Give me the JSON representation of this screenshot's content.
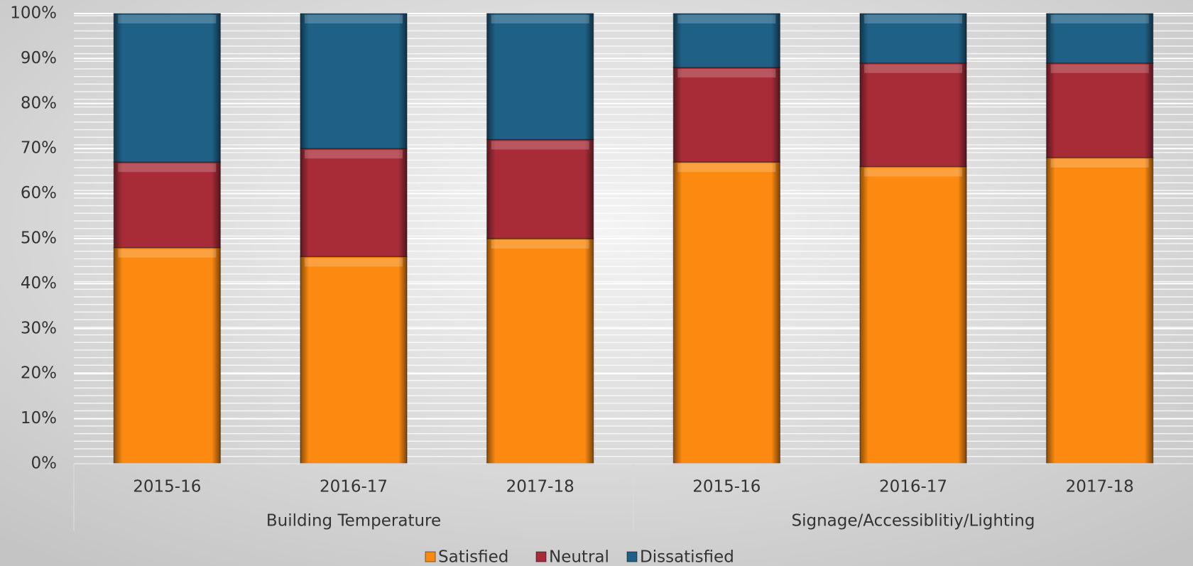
{
  "chart_data": {
    "type": "stacked_bar",
    "groups": [
      {
        "name": "Building Temperature",
        "categories": [
          "2015-16",
          "2016-17",
          "2017-18"
        ]
      },
      {
        "name": "Signage/Accessiblitiy/Lighting",
        "categories": [
          "2015-16",
          "2016-17",
          "2017-18"
        ]
      }
    ],
    "series": [
      {
        "name": "Satisfied",
        "color": "#fc8a10",
        "values": [
          48,
          46,
          50,
          67,
          66,
          68
        ]
      },
      {
        "name": "Neutral",
        "color": "#a82c38",
        "values": [
          19,
          24,
          22,
          21,
          23,
          21
        ]
      },
      {
        "name": "Dissatisfied",
        "color": "#1f6186",
        "values": [
          33,
          30,
          28,
          12,
          11,
          11
        ]
      }
    ],
    "ylim": [
      0,
      100
    ],
    "yticks": [
      {
        "value": 0,
        "label": "0%"
      },
      {
        "value": 10,
        "label": "10%"
      },
      {
        "value": 20,
        "label": "20%"
      },
      {
        "value": 30,
        "label": "30%"
      },
      {
        "value": 40,
        "label": "40%"
      },
      {
        "value": 50,
        "label": "50%"
      },
      {
        "value": 60,
        "label": "60%"
      },
      {
        "value": 70,
        "label": "70%"
      },
      {
        "value": 80,
        "label": "80%"
      },
      {
        "value": 90,
        "label": "90%"
      },
      {
        "value": 100,
        "label": "100%"
      }
    ],
    "grid": true,
    "legend": "bottom"
  }
}
